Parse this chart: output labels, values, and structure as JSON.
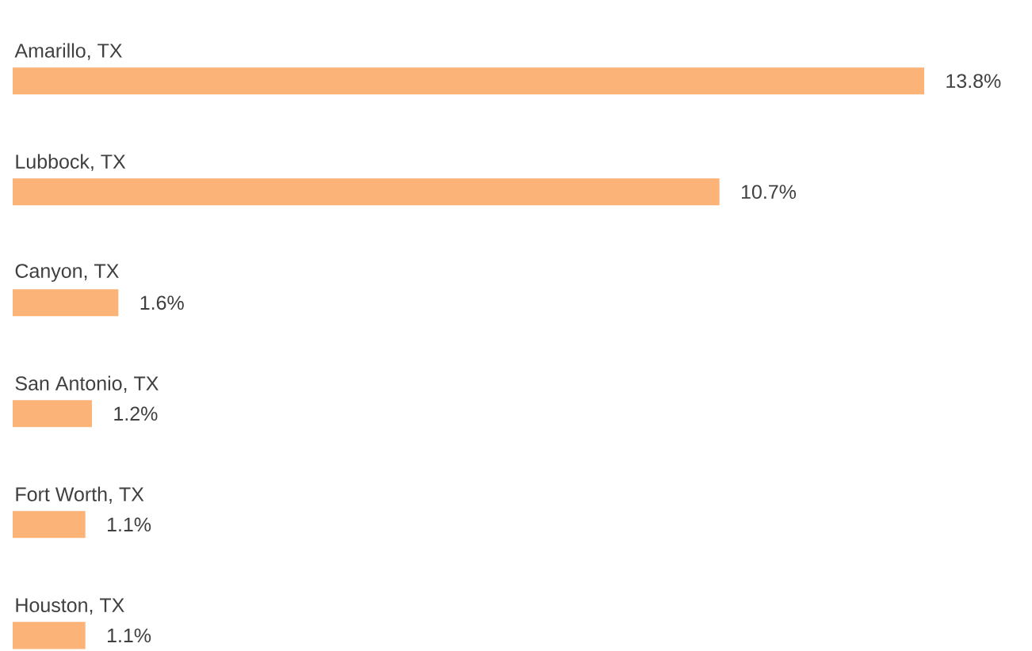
{
  "chart_data": {
    "type": "bar",
    "orientation": "horizontal",
    "color": "#fbb378",
    "categories": [
      "Amarillo, TX",
      "Lubbock, TX",
      "Canyon, TX",
      "San Antonio, TX",
      "Fort Worth, TX",
      "Houston, TX"
    ],
    "values": [
      13.8,
      10.7,
      1.6,
      1.2,
      1.1,
      1.1
    ],
    "value_labels": [
      "13.8%",
      "10.7%",
      "1.6%",
      "1.2%",
      "1.1%",
      "1.1%"
    ]
  }
}
